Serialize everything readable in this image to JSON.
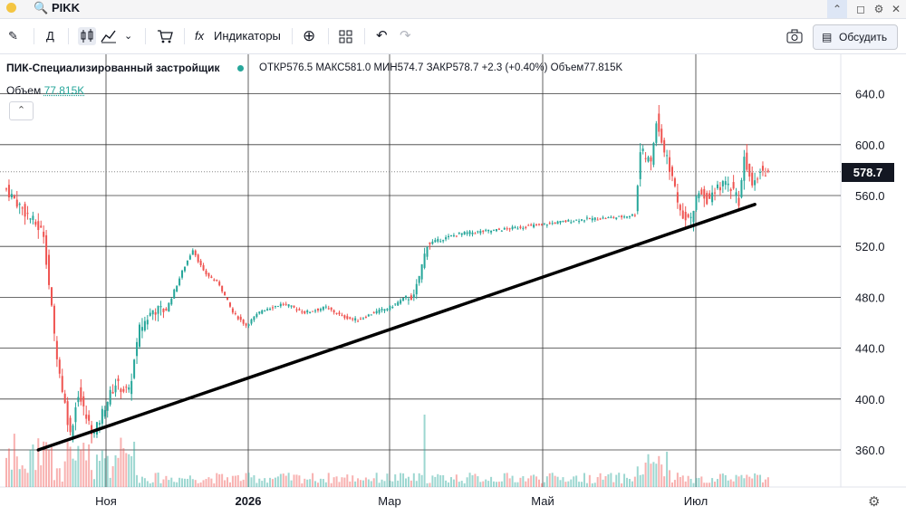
{
  "window": {
    "symbol": "PIKK"
  },
  "toolbar": {
    "interval": "Д",
    "indicators": "Индикаторы",
    "discuss": "Обсудить"
  },
  "legend": {
    "name": "ПИК-Специализированный застройщик",
    "open_label": "ОТКР",
    "open": "576.5",
    "high_label": "МАКС",
    "high": "581.0",
    "low_label": "МИН",
    "low": "574.7",
    "close_label": "ЗАКР",
    "close": "578.7",
    "change": "+2.3 (+0.40%)",
    "vol_label": "Объем",
    "vol": "77.815K"
  },
  "volume_legend": {
    "label": "Объем",
    "value": "77.815K"
  },
  "colors": {
    "up": "#26a69a",
    "down": "#ef5350",
    "text": "#131722",
    "trend": "#000000"
  },
  "chart_data": {
    "type": "candlestick",
    "title": "ПИК-Специализированный застройщик",
    "ylim": [
      325,
      660
    ],
    "yticks": [
      "640.0",
      "600.0",
      "560.0",
      "520.0",
      "480.0",
      "440.0",
      "400.0",
      "360.0"
    ],
    "x_labels": [
      "Ноя",
      "2026",
      "Мар",
      "Май",
      "Июл"
    ],
    "last_price": "578.7",
    "anchors": [
      {
        "i": 0,
        "p": 565
      },
      {
        "i": 5,
        "p": 552
      },
      {
        "i": 10,
        "p": 540
      },
      {
        "i": 14,
        "p": 530
      },
      {
        "i": 18,
        "p": 450
      },
      {
        "i": 20,
        "p": 420
      },
      {
        "i": 24,
        "p": 372
      },
      {
        "i": 27,
        "p": 405
      },
      {
        "i": 30,
        "p": 385
      },
      {
        "i": 33,
        "p": 372
      },
      {
        "i": 37,
        "p": 395
      },
      {
        "i": 41,
        "p": 412
      },
      {
        "i": 46,
        "p": 405
      },
      {
        "i": 50,
        "p": 455
      },
      {
        "i": 55,
        "p": 470
      },
      {
        "i": 60,
        "p": 470
      },
      {
        "i": 66,
        "p": 500
      },
      {
        "i": 70,
        "p": 518
      },
      {
        "i": 74,
        "p": 500
      },
      {
        "i": 80,
        "p": 490
      },
      {
        "i": 85,
        "p": 468
      },
      {
        "i": 90,
        "p": 458
      },
      {
        "i": 96,
        "p": 470
      },
      {
        "i": 104,
        "p": 475
      },
      {
        "i": 112,
        "p": 468
      },
      {
        "i": 120,
        "p": 472
      },
      {
        "i": 126,
        "p": 465
      },
      {
        "i": 132,
        "p": 462
      },
      {
        "i": 138,
        "p": 468
      },
      {
        "i": 144,
        "p": 472
      },
      {
        "i": 150,
        "p": 480
      },
      {
        "i": 153,
        "p": 480
      },
      {
        "i": 156,
        "p": 505
      },
      {
        "i": 158,
        "p": 522
      },
      {
        "i": 170,
        "p": 530
      },
      {
        "i": 185,
        "p": 533
      },
      {
        "i": 200,
        "p": 537
      },
      {
        "i": 215,
        "p": 541
      },
      {
        "i": 230,
        "p": 543
      },
      {
        "i": 236,
        "p": 545
      },
      {
        "i": 238,
        "p": 595
      },
      {
        "i": 242,
        "p": 585
      },
      {
        "i": 244,
        "p": 620
      },
      {
        "i": 247,
        "p": 595
      },
      {
        "i": 250,
        "p": 575
      },
      {
        "i": 253,
        "p": 548
      },
      {
        "i": 257,
        "p": 540
      },
      {
        "i": 260,
        "p": 565
      },
      {
        "i": 264,
        "p": 555
      },
      {
        "i": 268,
        "p": 568
      },
      {
        "i": 272,
        "p": 568
      },
      {
        "i": 275,
        "p": 556
      },
      {
        "i": 277,
        "p": 590
      },
      {
        "i": 280,
        "p": 572
      },
      {
        "i": 283,
        "p": 580
      },
      {
        "i": 286,
        "p": 578.7
      }
    ],
    "trendline": {
      "from": {
        "i": 12,
        "p": 360
      },
      "to": {
        "i": 281,
        "p": 553
      }
    }
  }
}
